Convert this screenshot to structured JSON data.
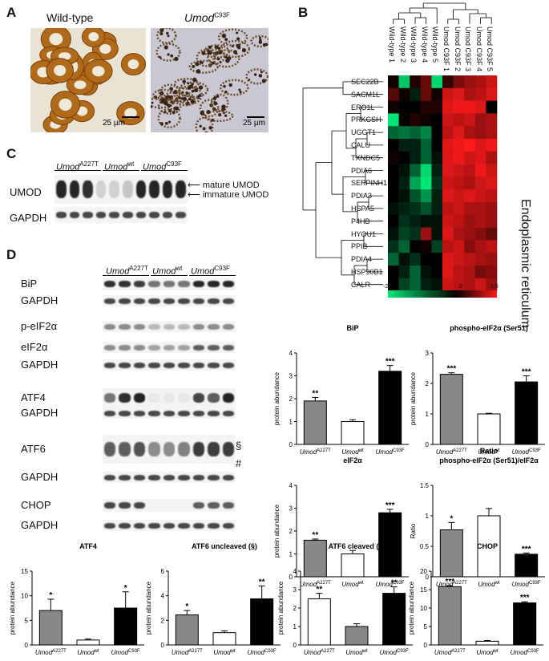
{
  "panels": {
    "A": "A",
    "B": "B",
    "C": "C",
    "D": "D"
  },
  "panelA": {
    "wt_title": "Wild-type",
    "mut_title_gene": "Umod",
    "mut_title_sup": "C93F",
    "scale_left": "25 µm",
    "scale_right": "25 µm"
  },
  "panelB": {
    "columns": [
      "Wild-type 1",
      "Wild-type 2",
      "Wild-type 3",
      "Wild-type 4",
      "Wild-type 5",
      "Umod C93F 1",
      "Umod C93F 2",
      "Umod C93F 3",
      "Umod C93F 4",
      "Umod C93F 5"
    ],
    "genes": [
      "SEC22B",
      "SACM1L",
      "ERO1L",
      "PRKCSH",
      "UGGT1",
      "CALU",
      "TXNDC5",
      "PDIA6",
      "SERPINH1",
      "PDIA3",
      "HSPA5",
      "P4HB",
      "HYOU1",
      "PPIB",
      "PDIA4",
      "HSP90B1",
      "CALR"
    ],
    "side_label": "Endoplasmic reticulum",
    "scale_min": "-2.5",
    "scale_mid": "0",
    "scale_max": "1.5",
    "matrix": [
      [
        0.1,
        -1.2,
        0.2,
        0.6,
        -1.3,
        0.3,
        0.7,
        0.9,
        1.0,
        1.2
      ],
      [
        0.5,
        0.1,
        -0.2,
        0.6,
        0.1,
        1.2,
        1.3,
        1.0,
        1.1,
        1.3
      ],
      [
        0.1,
        0.0,
        0.0,
        0.2,
        0.2,
        1.3,
        1.4,
        1.4,
        1.3,
        0.0
      ],
      [
        -1.5,
        0.0,
        0.2,
        0.1,
        0.0,
        1.2,
        1.1,
        1.2,
        0.9,
        1.0
      ],
      [
        -0.6,
        -0.7,
        -0.6,
        -0.8,
        0.0,
        1.1,
        1.3,
        1.0,
        0.9,
        1.0
      ],
      [
        0.0,
        -0.2,
        -0.2,
        -0.6,
        0.0,
        1.3,
        1.4,
        1.5,
        1.3,
        1.4
      ],
      [
        0.1,
        0.0,
        -0.2,
        -0.6,
        -0.1,
        1.3,
        1.4,
        1.2,
        1.3,
        1.0
      ],
      [
        0.0,
        -0.1,
        -0.6,
        -1.3,
        -0.2,
        1.3,
        1.2,
        1.1,
        1.4,
        1.2
      ],
      [
        0.0,
        -0.2,
        -1.0,
        -1.5,
        -0.3,
        1.2,
        1.1,
        1.0,
        1.2,
        1.3
      ],
      [
        0.0,
        -0.1,
        -0.5,
        -0.9,
        -0.2,
        1.3,
        1.2,
        1.3,
        1.2,
        1.1
      ],
      [
        -0.1,
        -0.2,
        -0.3,
        -0.5,
        -0.2,
        1.1,
        1.2,
        1.0,
        1.0,
        0.9
      ],
      [
        0.0,
        -0.3,
        -0.2,
        -0.1,
        -0.1,
        1.2,
        1.1,
        0.9,
        1.0,
        0.9
      ],
      [
        -0.1,
        -0.4,
        -0.3,
        0.9,
        -0.1,
        1.3,
        1.0,
        0.9,
        0.8,
        0.6
      ],
      [
        -0.3,
        -0.6,
        0.0,
        0.1,
        -0.4,
        1.1,
        1.2,
        0.8,
        1.0,
        1.1
      ],
      [
        -0.6,
        -0.1,
        -0.3,
        0.0,
        0.0,
        1.3,
        1.2,
        1.1,
        1.0,
        0.9
      ],
      [
        0.0,
        -0.2,
        -0.6,
        -0.1,
        0.0,
        1.3,
        1.1,
        1.0,
        0.7,
        0.8
      ],
      [
        0.0,
        -0.4,
        -0.6,
        -0.2,
        -0.1,
        1.2,
        1.1,
        1.0,
        1.2,
        0.9
      ]
    ]
  },
  "panelC": {
    "groups": [
      {
        "gene": "Umod",
        "sup": "A227T"
      },
      {
        "gene": "Umod",
        "sup": "wt"
      },
      {
        "gene": "Umod",
        "sup": "C93F"
      }
    ],
    "row_umod": "UMOD",
    "row_gapdh": "GAPDH",
    "mature": "mature UMOD",
    "immature": "immature UMOD"
  },
  "panelD": {
    "groups": [
      {
        "gene": "Umod",
        "sup": "A227T"
      },
      {
        "gene": "Umod",
        "sup": "wt"
      },
      {
        "gene": "Umod",
        "sup": "C93F"
      }
    ],
    "rows": [
      "BiP",
      "GAPDH",
      "p-eIF2α",
      "eIF2α",
      "GAPDH",
      "ATF4",
      "GAPDH",
      "ATF6",
      "GAPDH",
      "CHOP",
      "GAPDH"
    ],
    "section_mark": "§",
    "hash_mark": "#"
  },
  "colors": {
    "gray": "#888888",
    "white": "#ffffff",
    "black": "#000000",
    "heat_low": "#00e676",
    "heat_mid": "#000000",
    "heat_high": "#ff1a1a"
  },
  "chart_data": [
    {
      "type": "bar",
      "title": "BiP",
      "ylabel": "protein abundance",
      "categories": [
        "UmodA227T",
        "Umodwt",
        "UmodC93F"
      ],
      "values": [
        1.9,
        1.0,
        3.2
      ],
      "errors": [
        0.15,
        0.08,
        0.25
      ],
      "significance": [
        "**",
        "",
        "***"
      ],
      "ylim": [
        0,
        4
      ],
      "yticks": [
        0,
        1,
        2,
        3,
        4
      ],
      "fills": [
        "gray",
        "white",
        "black"
      ]
    },
    {
      "type": "bar",
      "title": "phospho-eIF2α (Ser51)",
      "ylabel": "protein abundance",
      "categories": [
        "UmodA227T",
        "Umodwt",
        "UmodC93F"
      ],
      "values": [
        2.3,
        1.0,
        2.05
      ],
      "errors": [
        0.05,
        0.02,
        0.2
      ],
      "significance": [
        "***",
        "",
        "***"
      ],
      "ylim": [
        0,
        3
      ],
      "yticks": [
        0,
        1,
        2,
        3
      ],
      "fills": [
        "gray",
        "white",
        "black"
      ]
    },
    {
      "type": "bar",
      "title": "eIF2α",
      "ylabel": "protein abundance",
      "categories": [
        "UmodA227T",
        "Umodwt",
        "UmodC93F"
      ],
      "values": [
        1.6,
        1.0,
        2.8
      ],
      "errors": [
        0.05,
        0.15,
        0.15
      ],
      "significance": [
        "**",
        "",
        "***"
      ],
      "ylim": [
        0,
        4
      ],
      "yticks": [
        0,
        1,
        2,
        3,
        4
      ],
      "fills": [
        "gray",
        "white",
        "black"
      ]
    },
    {
      "type": "bar",
      "title_line1": "Ratio",
      "title": "phospho-eIF2α (Ser51)/eIF2α",
      "ylabel": "Ratio",
      "categories": [
        "UmodA227T",
        "Umodwt",
        "UmodC93F"
      ],
      "values": [
        0.77,
        1.0,
        0.37
      ],
      "errors": [
        0.12,
        0.12,
        0.02
      ],
      "significance": [
        "*",
        "",
        "***"
      ],
      "ylim": [
        0,
        1.5
      ],
      "yticks": [
        0,
        0.5,
        1.0,
        1.5
      ],
      "fills": [
        "gray",
        "white",
        "black"
      ]
    },
    {
      "type": "bar",
      "title": "ATF4",
      "ylabel": "protein abundance",
      "categories": [
        "UmodA227T",
        "Umodwt",
        "UmodC93F"
      ],
      "values": [
        7.0,
        1.0,
        7.5
      ],
      "errors": [
        2.3,
        0.2,
        3.3
      ],
      "significance": [
        "*",
        "",
        "*"
      ],
      "ylim": [
        0,
        15
      ],
      "yticks": [
        0,
        5,
        10,
        15
      ],
      "fills": [
        "gray",
        "white",
        "black"
      ]
    },
    {
      "type": "bar",
      "title": "ATF6 uncleaved (§)",
      "ylabel": "protein abundance",
      "categories": [
        "UmodA227T",
        "Umodwt",
        "UmodC93F"
      ],
      "values": [
        2.45,
        1.0,
        3.75
      ],
      "errors": [
        0.35,
        0.15,
        1.05
      ],
      "significance": [
        "*",
        "",
        "**"
      ],
      "ylim": [
        0,
        6
      ],
      "yticks": [
        0,
        2,
        4,
        6
      ],
      "fills": [
        "gray",
        "white",
        "black"
      ]
    },
    {
      "type": "bar",
      "title": "ATF6 cleaved (#)",
      "ylabel": "protein abundance",
      "categories": [
        "UmodA227T",
        "Umodwt",
        "UmodC93F"
      ],
      "values": [
        2.5,
        1.0,
        2.8
      ],
      "errors": [
        0.3,
        0.15,
        0.35
      ],
      "significance": [
        "**",
        "",
        "**"
      ],
      "ylim": [
        0,
        4
      ],
      "yticks": [
        0,
        1,
        2,
        3,
        4
      ],
      "fills": [
        "white",
        "gray",
        "black"
      ]
    },
    {
      "type": "bar",
      "title": "CHOP",
      "ylabel": "protein abundance",
      "categories": [
        "UmodA227T",
        "Umodwt",
        "UmodC93F"
      ],
      "values": [
        15.8,
        1.0,
        11.4
      ],
      "errors": [
        0.3,
        0.2,
        0.3
      ],
      "significance": [
        "***",
        "",
        "***"
      ],
      "ylim": [
        0,
        20
      ],
      "yticks": [
        0,
        5,
        10,
        15,
        20
      ],
      "fills": [
        "gray",
        "white",
        "black"
      ]
    }
  ]
}
